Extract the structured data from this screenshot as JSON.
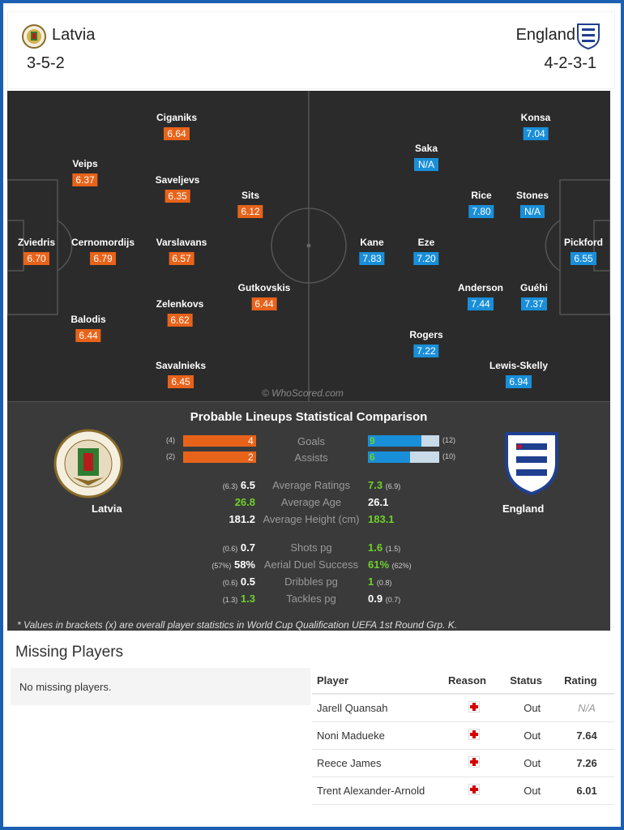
{
  "home": {
    "name": "Latvia",
    "formation": "3-5-2",
    "crest_color": "#8a6b2a"
  },
  "away": {
    "name": "England",
    "formation": "4-2-3-1",
    "crest_color": "#1f3f8f"
  },
  "pitch": {
    "watermark": "© WhoScored.com",
    "home_players": [
      {
        "name": "Zviedris",
        "rating": "6.70"
      },
      {
        "name": "Veips",
        "rating": "6.37"
      },
      {
        "name": "Cernomordijs",
        "rating": "6.79"
      },
      {
        "name": "Balodis",
        "rating": "6.44"
      },
      {
        "name": "Ciganiks",
        "rating": "6.64"
      },
      {
        "name": "Saveljevs",
        "rating": "6.35"
      },
      {
        "name": "Varslavans",
        "rating": "6.57"
      },
      {
        "name": "Zelenkovs",
        "rating": "6.62"
      },
      {
        "name": "Savalnieks",
        "rating": "6.45"
      },
      {
        "name": "Sits",
        "rating": "6.12"
      },
      {
        "name": "Gutkovskis",
        "rating": "6.44"
      }
    ],
    "away_players": [
      {
        "name": "Konsa",
        "rating": "7.04"
      },
      {
        "name": "Saka",
        "rating": "N/A"
      },
      {
        "name": "Rice",
        "rating": "7.80"
      },
      {
        "name": "Stones",
        "rating": "N/A"
      },
      {
        "name": "Kane",
        "rating": "7.83"
      },
      {
        "name": "Eze",
        "rating": "7.20"
      },
      {
        "name": "Pickford",
        "rating": "6.55"
      },
      {
        "name": "Anderson",
        "rating": "7.44"
      },
      {
        "name": "Guéhi",
        "rating": "7.37"
      },
      {
        "name": "Rogers",
        "rating": "7.22"
      },
      {
        "name": "Lewis-Skelly",
        "rating": "6.94"
      }
    ]
  },
  "comparison": {
    "title": "Probable Lineups Statistical Comparison",
    "home_label": "Latvia",
    "away_label": "England",
    "bars": [
      {
        "label": "Goals",
        "home": 4,
        "home_overall": "(4)",
        "away": 9,
        "away_overall": "(12)"
      },
      {
        "label": "Assists",
        "home": 2,
        "home_overall": "(2)",
        "away": 6,
        "away_overall": "(10)"
      }
    ],
    "stats": [
      {
        "label": "Average Ratings",
        "home_overall": "(6.3)",
        "home": "6.5",
        "away": "7.3",
        "away_overall": "(6.9)",
        "better": "away"
      },
      {
        "label": "Average Age",
        "home_overall": "",
        "home": "26.8",
        "away": "26.1",
        "away_overall": "",
        "better": "home"
      },
      {
        "label": "Average Height (cm)",
        "home_overall": "",
        "home": "181.2",
        "away": "183.1",
        "away_overall": "",
        "better": "away"
      },
      {
        "label": "Shots pg",
        "home_overall": "(0.6)",
        "home": "0.7",
        "away": "1.6",
        "away_overall": "(1.5)",
        "better": "away"
      },
      {
        "label": "Aerial Duel Success",
        "home_overall": "(57%)",
        "home": "58%",
        "away": "61%",
        "away_overall": "(62%)",
        "better": "away"
      },
      {
        "label": "Dribbles pg",
        "home_overall": "(0.6)",
        "home": "0.5",
        "away": "1",
        "away_overall": "(0.8)",
        "better": "away"
      },
      {
        "label": "Tackles pg",
        "home_overall": "(1.3)",
        "home": "1.3",
        "away": "0.9",
        "away_overall": "(0.7)",
        "better": "home"
      }
    ],
    "footnote": "* Values in brackets (x) are overall player statistics in World Cup Qualification UEFA 1st Round Grp. K."
  },
  "missing": {
    "title": "Missing Players",
    "home_text": "No missing players.",
    "headers": {
      "player": "Player",
      "reason": "Reason",
      "status": "Status",
      "rating": "Rating"
    },
    "rows": [
      {
        "player": "Jarell Quansah",
        "status": "Out",
        "rating": "N/A"
      },
      {
        "player": "Noni Madueke",
        "status": "Out",
        "rating": "7.64"
      },
      {
        "player": "Reece James",
        "status": "Out",
        "rating": "7.26"
      },
      {
        "player": "Trent Alexander-Arnold",
        "status": "Out",
        "rating": "6.01"
      }
    ]
  }
}
